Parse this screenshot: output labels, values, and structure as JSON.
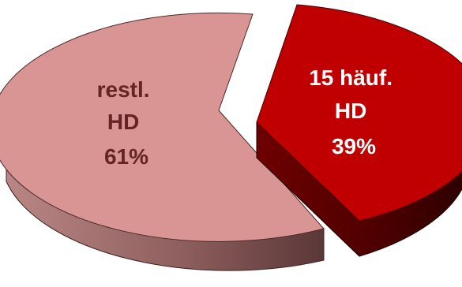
{
  "chart_data": {
    "type": "pie",
    "title": "",
    "style": "3d-exploded",
    "slices": [
      {
        "label_lines": [
          "restl.",
          "HD"
        ],
        "value": 61,
        "percent_label": "61%",
        "color": "#d99594",
        "text_color": "#632423",
        "exploded": false
      },
      {
        "label_lines": [
          "15 häuf.",
          "HD"
        ],
        "value": 39,
        "percent_label": "39%",
        "color": "#c00000",
        "text_color": "#ffffff",
        "exploded": true
      }
    ]
  }
}
